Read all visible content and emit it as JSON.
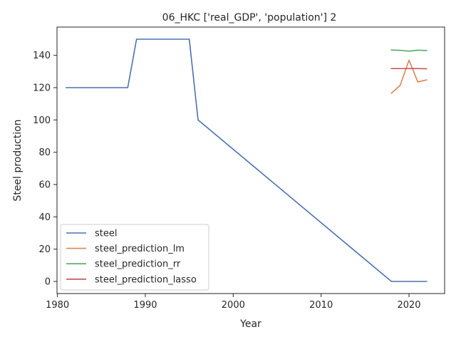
{
  "chart_data": {
    "type": "line",
    "title": "06_HKC ['real_GDP', 'population'] 2",
    "xlabel": "Year",
    "ylabel": "Steel production",
    "xlim": [
      1979.95,
      2024.05
    ],
    "ylim": [
      -7.5,
      157.5
    ],
    "xticks": [
      1980,
      1990,
      2000,
      2010,
      2020
    ],
    "yticks": [
      0,
      20,
      40,
      60,
      80,
      100,
      120,
      140
    ],
    "grid": false,
    "legend": "lower-left",
    "series": [
      {
        "name": "steel",
        "color": "#4c72b0",
        "points": [
          [
            1981,
            120
          ],
          [
            1988,
            120
          ],
          [
            1989,
            150
          ],
          [
            1995,
            150
          ],
          [
            1996,
            100
          ],
          [
            2018,
            0
          ],
          [
            2022,
            0
          ]
        ]
      },
      {
        "name": "steel_prediction_lm",
        "color": "#dd8452",
        "points": [
          [
            2018,
            116.5
          ],
          [
            2019,
            121.5
          ],
          [
            2020,
            137
          ],
          [
            2021,
            123.5
          ],
          [
            2022,
            124.8
          ]
        ]
      },
      {
        "name": "steel_prediction_rr",
        "color": "#55a868",
        "points": [
          [
            2018,
            143.3
          ],
          [
            2019,
            143.1
          ],
          [
            2020,
            142.6
          ],
          [
            2021,
            143.2
          ],
          [
            2022,
            143.0
          ]
        ]
      },
      {
        "name": "steel_prediction_lasso",
        "color": "#c44e52",
        "points": [
          [
            2018,
            131.8
          ],
          [
            2019,
            131.8
          ],
          [
            2020,
            131.8
          ],
          [
            2021,
            131.8
          ],
          [
            2022,
            131.7
          ]
        ]
      }
    ]
  }
}
